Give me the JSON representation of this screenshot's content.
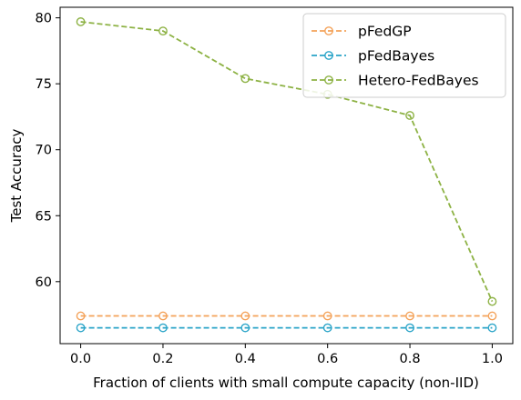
{
  "chart_data": {
    "type": "line",
    "xlabel": "Fraction of clients with small compute capacity (non-IID)",
    "ylabel": "Test Accuracy",
    "xlim": [
      -0.05,
      1.05
    ],
    "ylim": [
      55.3,
      80.8
    ],
    "xticks": [
      0.0,
      0.2,
      0.4,
      0.6,
      0.8,
      1.0
    ],
    "xtick_labels": [
      "0.0",
      "0.2",
      "0.4",
      "0.6",
      "0.8",
      "1.0"
    ],
    "yticks": [
      60,
      65,
      70,
      75,
      80
    ],
    "ytick_labels": [
      "60",
      "65",
      "70",
      "75",
      "80"
    ],
    "grid": false,
    "legend_position": "top-right",
    "x": [
      0.0,
      0.2,
      0.4,
      0.6,
      0.8,
      1.0
    ],
    "series": [
      {
        "name": "pFedGP",
        "color": "#f4a259",
        "values": [
          57.4,
          57.4,
          57.4,
          57.4,
          57.4,
          57.4
        ]
      },
      {
        "name": "pFedBayes",
        "color": "#2aa4c8",
        "values": [
          56.5,
          56.5,
          56.5,
          56.5,
          56.5,
          56.5
        ]
      },
      {
        "name": "Hetero-FedBayes",
        "color": "#8db244",
        "values": [
          79.7,
          79.0,
          75.4,
          74.2,
          72.6,
          58.5
        ]
      }
    ]
  }
}
